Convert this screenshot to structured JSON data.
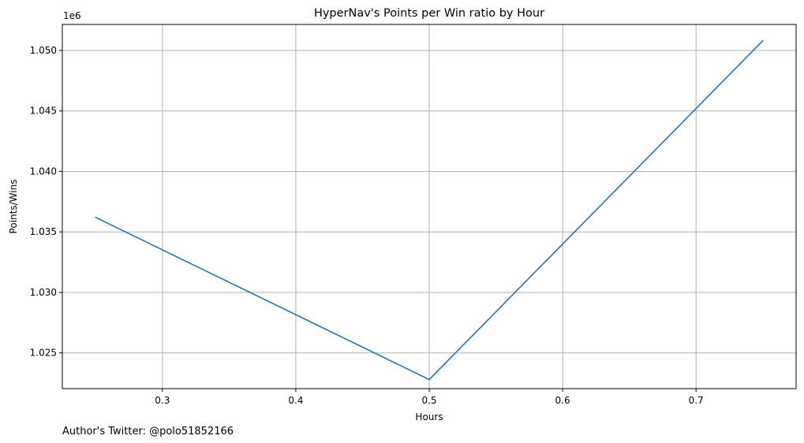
{
  "chart_data": {
    "type": "line",
    "title": "HyperNav's Points per Win ratio by Hour",
    "xlabel": "Hours",
    "ylabel": "Points/Wins",
    "y_offset_label": "1e6",
    "y_multiplier": 1000000,
    "xlim": [
      0.225,
      0.775
    ],
    "ylim": [
      1.02205,
      1.05215
    ],
    "x_ticks": [
      0.3,
      0.4,
      0.5,
      0.6,
      0.7
    ],
    "x_tick_labels": [
      "0.3",
      "0.4",
      "0.5",
      "0.6",
      "0.7"
    ],
    "y_ticks": [
      1.025,
      1.03,
      1.035,
      1.04,
      1.045,
      1.05
    ],
    "y_tick_labels": [
      "1.025",
      "1.030",
      "1.035",
      "1.040",
      "1.045",
      "1.050"
    ],
    "grid": true,
    "line_color": "#1f77b4",
    "grid_color": "#b0b0b0",
    "series": [
      {
        "x": [
          0.25,
          0.5,
          0.75
        ],
        "y": [
          1.0362,
          1.0228,
          1.0508
        ]
      }
    ]
  },
  "footer": {
    "text": "Author's Twitter: @polo51852166"
  }
}
